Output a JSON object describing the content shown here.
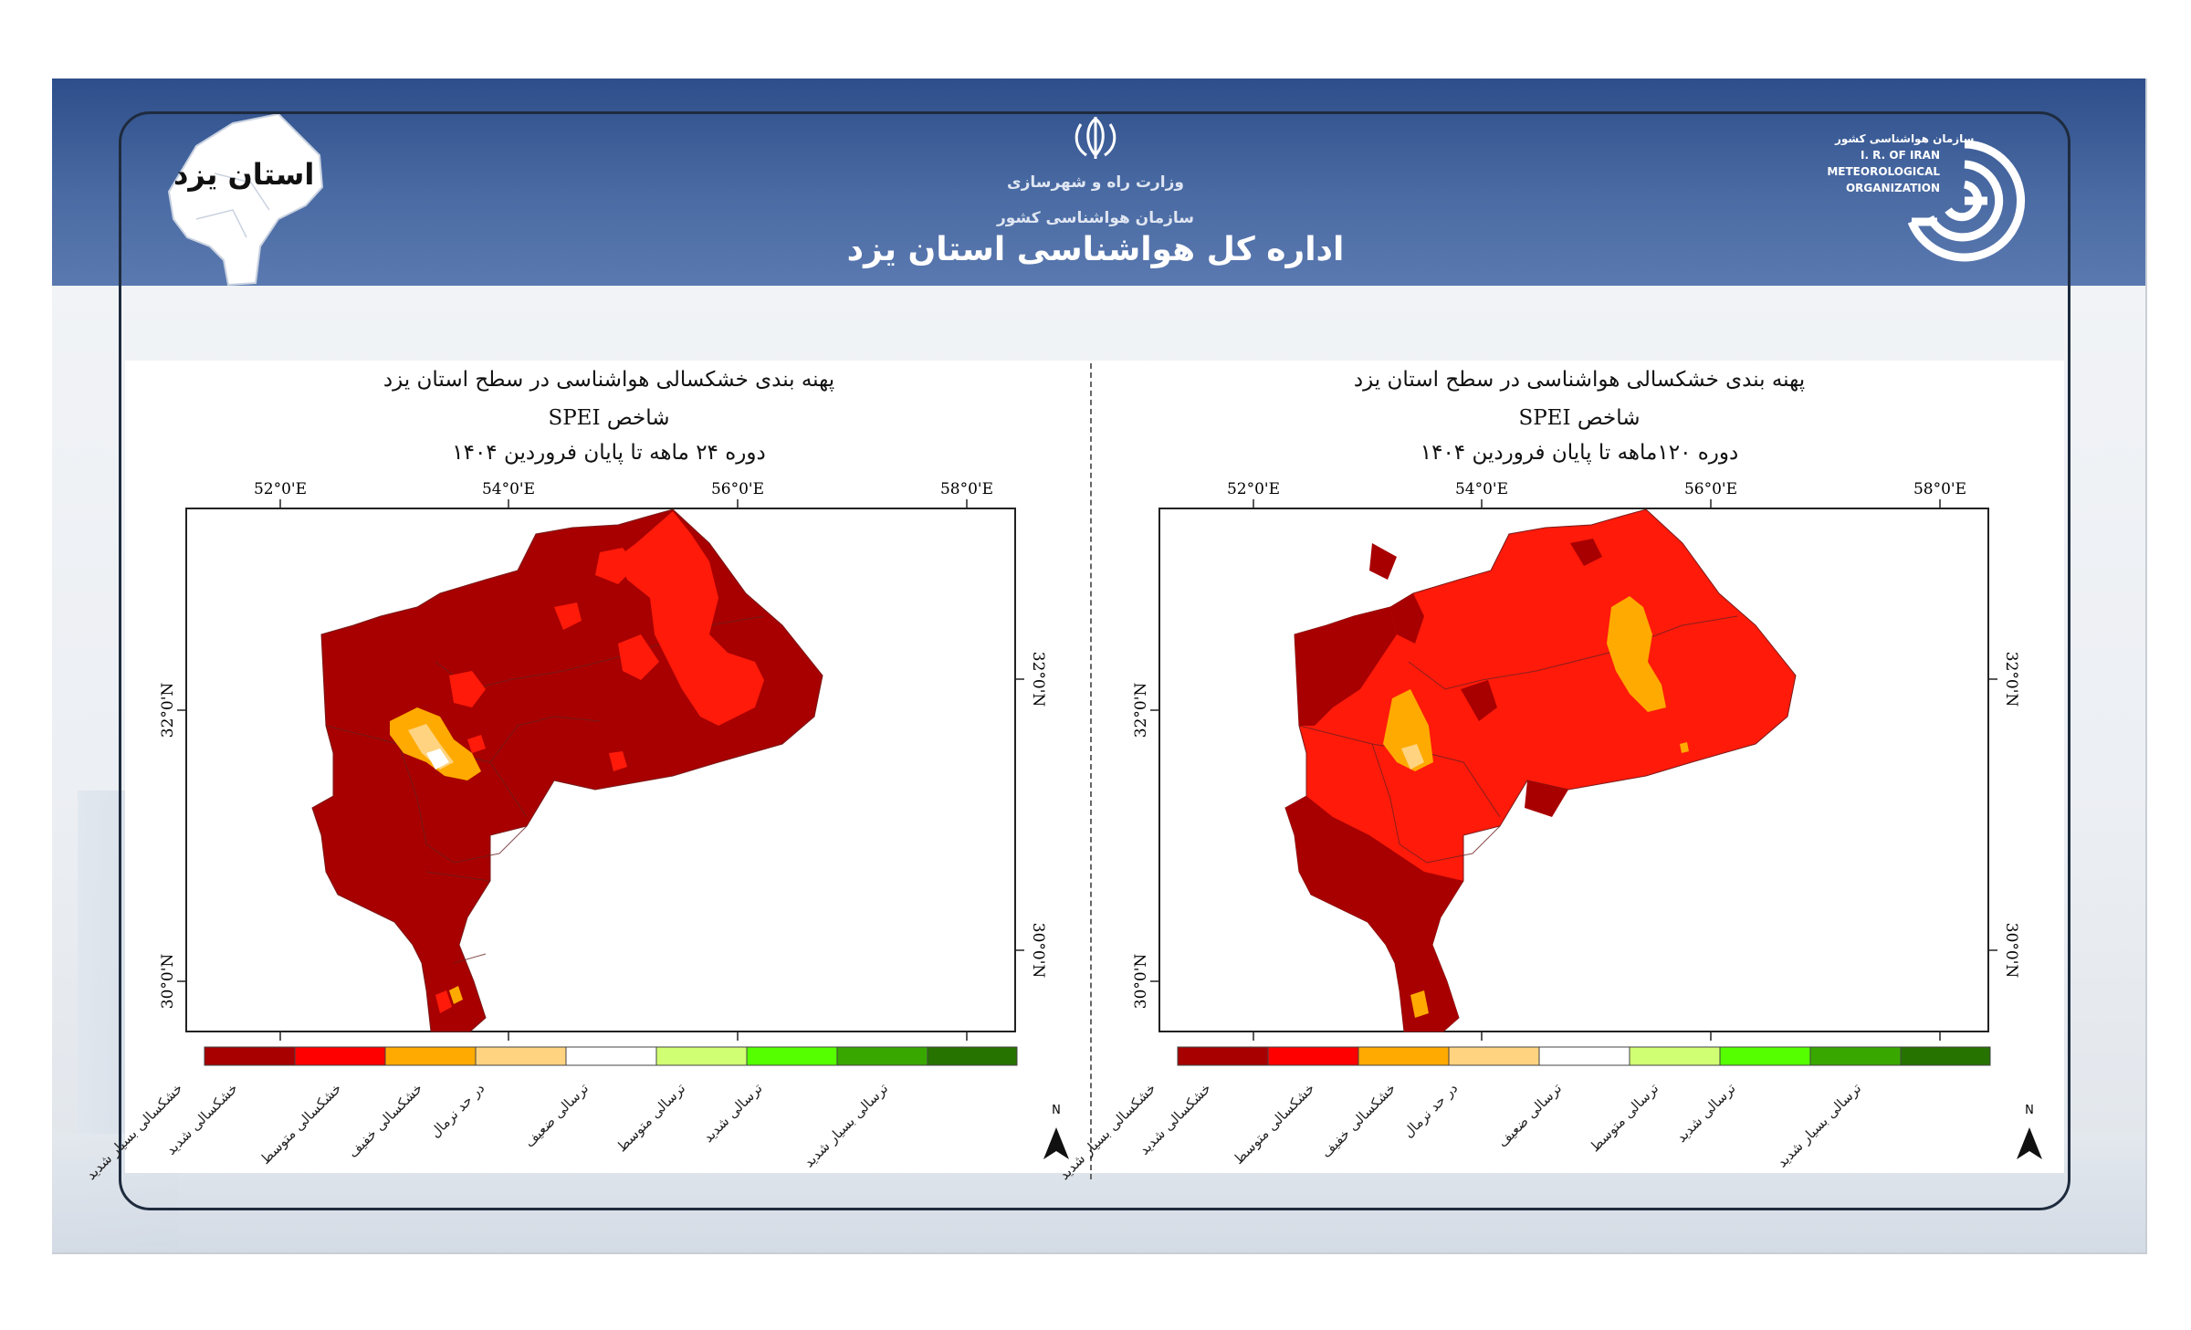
{
  "header": {
    "province_badge": "استان یزد",
    "ministry": "وزارت راه و شهرسازی",
    "organization": "سازمان هواشناسی کشور",
    "title": "اداره کل هواشناسی استان یزد",
    "logo_fa": "سازمان هواشناسی کشور",
    "logo_en_1": "I. R. OF IRAN",
    "logo_en_2": "METEOROLOGICAL",
    "logo_en_3": "ORGANIZATION",
    "emblem_icon": "iran-emblem-icon",
    "logo_icon": "irimo-logo-icon"
  },
  "panels": [
    {
      "id": "left",
      "title": "پهنه بندی خشکسالی هواشناسی در سطح استان یزد",
      "index": "شاخص SPEI",
      "period": "دوره    ۲۴ ماهه تا پایان  فروردین ۱۴۰۴",
      "x_ticks": [
        "52°0'E",
        "54°0'E",
        "56°0'E",
        "58°0'E"
      ],
      "y_ticks": [
        "32°0'N",
        "30°0'N"
      ],
      "north_label": "N"
    },
    {
      "id": "right",
      "title": "پهنه بندی خشکسالی هواشناسی در سطح استان یزد",
      "index": "شاخص SPEI",
      "period": "دوره   ۱۲۰ماهه تا پایان  فروردین ۱۴۰۴",
      "x_ticks": [
        "52°0'E",
        "54°0'E",
        "56°0'E",
        "58°0'E"
      ],
      "y_ticks": [
        "32°0'N",
        "30°0'N"
      ],
      "north_label": "N"
    }
  ],
  "legend": [
    {
      "label": "خشکسالی بسیار شدید",
      "color": "#a80000"
    },
    {
      "label": "خشکسالی شدید",
      "color": "#ff0000"
    },
    {
      "label": "خشکسالی متوسط",
      "color": "#ffaa00"
    },
    {
      "label": "خشکسالی خفیف",
      "color": "#ffd37f"
    },
    {
      "label": "در حد نرمال",
      "color": "#ffffff"
    },
    {
      "label": "ترسالی ضعیف",
      "color": "#d1ff73"
    },
    {
      "label": "ترسالی متوسط",
      "color": "#55ff00"
    },
    {
      "label": "ترسالی شدید",
      "color": "#38a800"
    },
    {
      "label": "ترسالی بسیار شدید",
      "color": "#267300"
    }
  ],
  "colors": {
    "header_blue": "#3a5a95",
    "extreme_drought": "#a80000",
    "severe_drought": "#ff0000",
    "moderate_drought": "#ffaa00",
    "mild_drought": "#ffd37f"
  }
}
